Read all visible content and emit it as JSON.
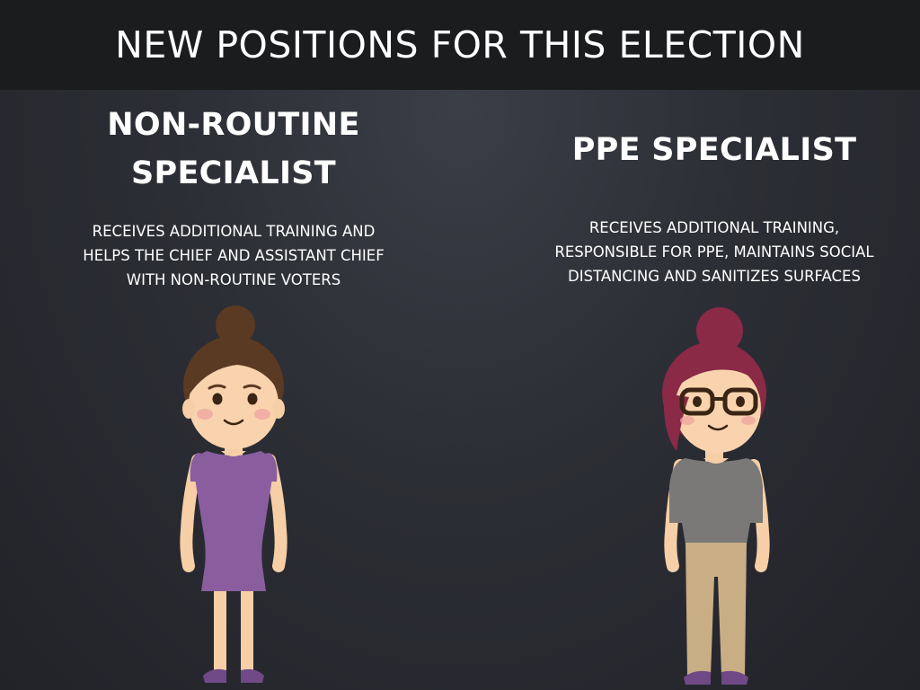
{
  "header": {
    "title": "NEW POSITIONS FOR THIS ELECTION"
  },
  "positions": [
    {
      "title_line1": "NON-ROUTINE",
      "title_line2": "SPECIALIST",
      "desc_line1": "RECEIVES ADDITIONAL TRAINING AND",
      "desc_line2": "HELPS THE CHIEF AND ASSISTANT CHIEF",
      "desc_line3": "WITH NON-ROUTINE VOTERS",
      "illustration": "woman-purple-dress"
    },
    {
      "title_line1": "PPE SPECIALIST",
      "desc_line1": "RECEIVES ADDITIONAL TRAINING,",
      "desc_line2": "RESPONSIBLE FOR PPE, MAINTAINS SOCIAL",
      "desc_line3": "DISTANCING AND SANITIZES SURFACES",
      "illustration": "woman-glasses-gray-top"
    }
  ],
  "colors": {
    "header_bg": "#1b1c1e",
    "slide_bg": "#2c2e35",
    "text": "#ffffff"
  }
}
